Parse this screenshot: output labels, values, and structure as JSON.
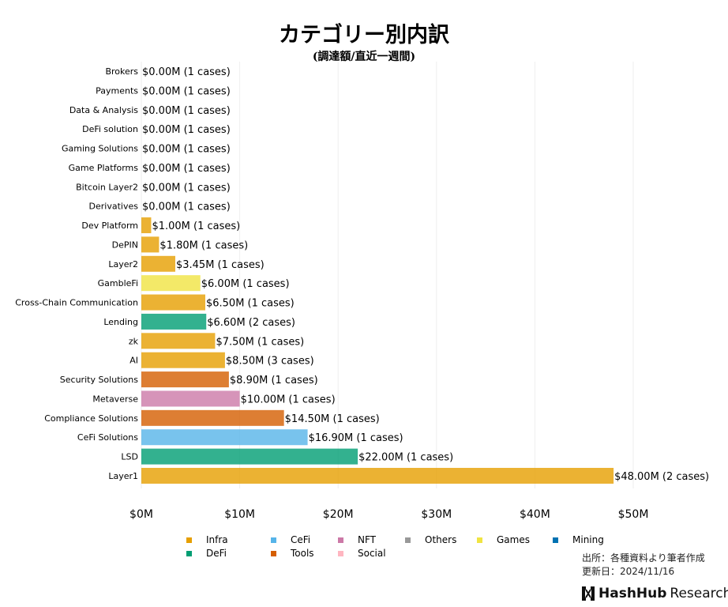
{
  "chart_data": {
    "type": "bar",
    "orientation": "horizontal",
    "title": "カテゴリー別内訳",
    "subtitle": "(調達額/直近一週間)",
    "categories": [
      "Brokers",
      "Payments",
      "Data & Analysis",
      "DeFi solution",
      "Gaming Solutions",
      "Game Platforms",
      "Bitcoin Layer2",
      "Derivatives",
      "Dev Platform",
      "DePIN",
      "Layer2",
      "GambleFi",
      "Cross-Chain Communication",
      "Lending",
      "zk",
      "AI",
      "Security Solutions",
      "Metaverse",
      "Compliance Solutions",
      "CeFi Solutions",
      "LSD",
      "Layer1"
    ],
    "values": [
      0,
      0,
      0,
      0,
      0,
      0,
      0,
      0,
      1.0,
      1.8,
      3.45,
      6.0,
      6.5,
      6.6,
      7.5,
      8.5,
      8.9,
      10.0,
      14.5,
      16.9,
      22.0,
      48.0
    ],
    "cases": [
      1,
      1,
      1,
      1,
      1,
      1,
      1,
      1,
      1,
      1,
      1,
      1,
      1,
      2,
      1,
      3,
      1,
      1,
      1,
      1,
      1,
      2
    ],
    "groups": [
      "Infra",
      "Infra",
      "Infra",
      "Infra",
      "Infra",
      "Infra",
      "Infra",
      "Infra",
      "Infra",
      "Infra",
      "Infra",
      "Games",
      "Infra",
      "DeFi",
      "Infra",
      "Infra",
      "Tools",
      "NFT",
      "Tools",
      "CeFi",
      "DeFi",
      "Infra"
    ],
    "data_labels": [
      "$0.00M (1 cases)",
      "$0.00M (1 cases)",
      "$0.00M (1 cases)",
      "$0.00M (1 cases)",
      "$0.00M (1 cases)",
      "$0.00M (1 cases)",
      "$0.00M (1 cases)",
      "$0.00M (1 cases)",
      "$1.00M (1 cases)",
      "$1.80M (1 cases)",
      "$3.45M (1 cases)",
      "$6.00M (1 cases)",
      "$6.50M (1 cases)",
      "$6.60M (2 cases)",
      "$7.50M (1 cases)",
      "$8.50M (3 cases)",
      "$8.90M (1 cases)",
      "$10.00M (1 cases)",
      "$14.50M (1 cases)",
      "$16.90M (1 cases)",
      "$22.00M (1 cases)",
      "$48.00M (2 cases)"
    ],
    "xlim": [
      0,
      50
    ],
    "xticks": [
      0,
      10,
      20,
      30,
      40,
      50
    ],
    "xtick_labels": [
      "$0M",
      "$10M",
      "$20M",
      "$30M",
      "$40M",
      "$50M"
    ],
    "grid": "vertical",
    "legend_placement": "bottom",
    "legend": [
      {
        "name": "Infra",
        "color": "#E69F00"
      },
      {
        "name": "CeFi",
        "color": "#56B4E9"
      },
      {
        "name": "NFT",
        "color": "#CC79A7"
      },
      {
        "name": "Others",
        "color": "#999999"
      },
      {
        "name": "Games",
        "color": "#F0E442"
      },
      {
        "name": "Mining",
        "color": "#0072B2"
      },
      {
        "name": "DeFi",
        "color": "#009E73"
      },
      {
        "name": "Tools",
        "color": "#D55E00"
      },
      {
        "name": "Social",
        "color": "#FFB6C1"
      }
    ]
  },
  "footer": {
    "source": "出所：各種資料より筆者作成",
    "updated": "更新日：2024/11/16",
    "logo_bold": "HashHub",
    "logo_rest": "Research"
  }
}
